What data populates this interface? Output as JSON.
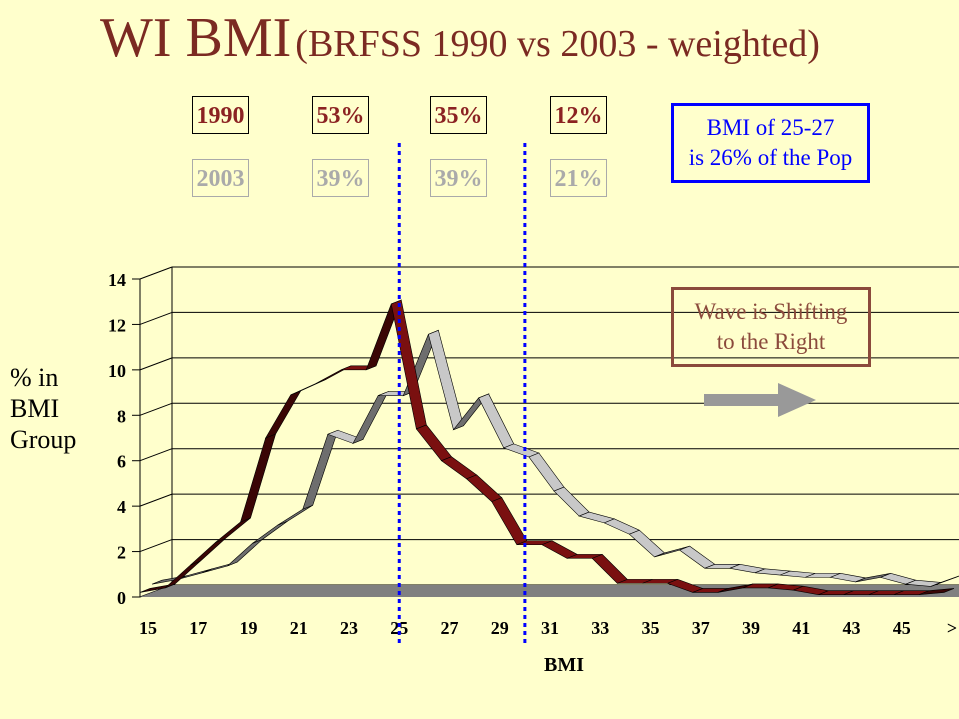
{
  "title": {
    "main": "WI BMI",
    "sub": "(BRFSS 1990 vs 2003 - weighted)"
  },
  "summary": {
    "row1990": {
      "year": "1990",
      "v1": "53%",
      "v2": "35%",
      "v3": "12%"
    },
    "row2003": {
      "year": "2003",
      "v1": "39%",
      "v2": "39%",
      "v3": "21%"
    }
  },
  "callout": {
    "line1": "BMI of 25-27",
    "line2": "is 26% of the Pop"
  },
  "wave": {
    "line1": "Wave is Shifting",
    "line2": "to the Right"
  },
  "axis": {
    "ylabel_l1": "% in",
    "ylabel_l2": "BMI",
    "ylabel_l3": "Group",
    "xlabel": "BMI"
  },
  "colors": {
    "series1990": "#7a1010",
    "series1990_side": "#3a0505",
    "series2003": "#c8c8c8",
    "series2003_side": "#6e6e6e",
    "floor": "#808080",
    "marker": "#0000ff",
    "arrow": "#999999"
  },
  "chart_data": {
    "type": "line",
    "xlabel": "BMI",
    "ylabel": "% in BMI Group",
    "ylim": [
      0,
      14
    ],
    "yticks": [
      "0",
      "2",
      "4",
      "6",
      "8",
      "10",
      "12",
      "14"
    ],
    "xticks": [
      "15",
      "17",
      "19",
      "21",
      "23",
      "25",
      "27",
      "29",
      "31",
      "33",
      "35",
      "37",
      "39",
      "41",
      "43",
      "45",
      ">"
    ],
    "x": [
      15,
      16,
      17,
      18,
      19,
      20,
      21,
      22,
      23,
      24,
      25,
      26,
      27,
      28,
      29,
      30,
      31,
      32,
      33,
      34,
      35,
      36,
      37,
      38,
      39,
      40,
      41,
      42,
      43,
      44,
      45,
      46,
      47
    ],
    "series": [
      {
        "name": "1990",
        "values": [
          0.2,
          0.4,
          1.4,
          2.4,
          3.3,
          7.0,
          8.9,
          9.4,
          10.0,
          10.0,
          12.9,
          7.4,
          6.0,
          5.2,
          4.2,
          2.3,
          2.3,
          1.7,
          1.7,
          0.6,
          0.6,
          0.6,
          0.2,
          0.2,
          0.4,
          0.4,
          0.3,
          0.1,
          0.1,
          0.1,
          0.1,
          0.1,
          0.2
        ]
      },
      {
        "name": "2003",
        "values": [
          0.3,
          0.5,
          0.8,
          1.1,
          2.1,
          2.9,
          3.6,
          6.9,
          6.5,
          8.6,
          8.6,
          11.3,
          7.1,
          8.5,
          6.3,
          5.9,
          4.4,
          3.3,
          3.0,
          2.5,
          1.5,
          1.8,
          1.0,
          1.0,
          0.8,
          0.7,
          0.6,
          0.6,
          0.4,
          0.6,
          0.3,
          0.2,
          0.6
        ]
      }
    ],
    "markers": [
      25,
      30
    ],
    "grid": true
  }
}
